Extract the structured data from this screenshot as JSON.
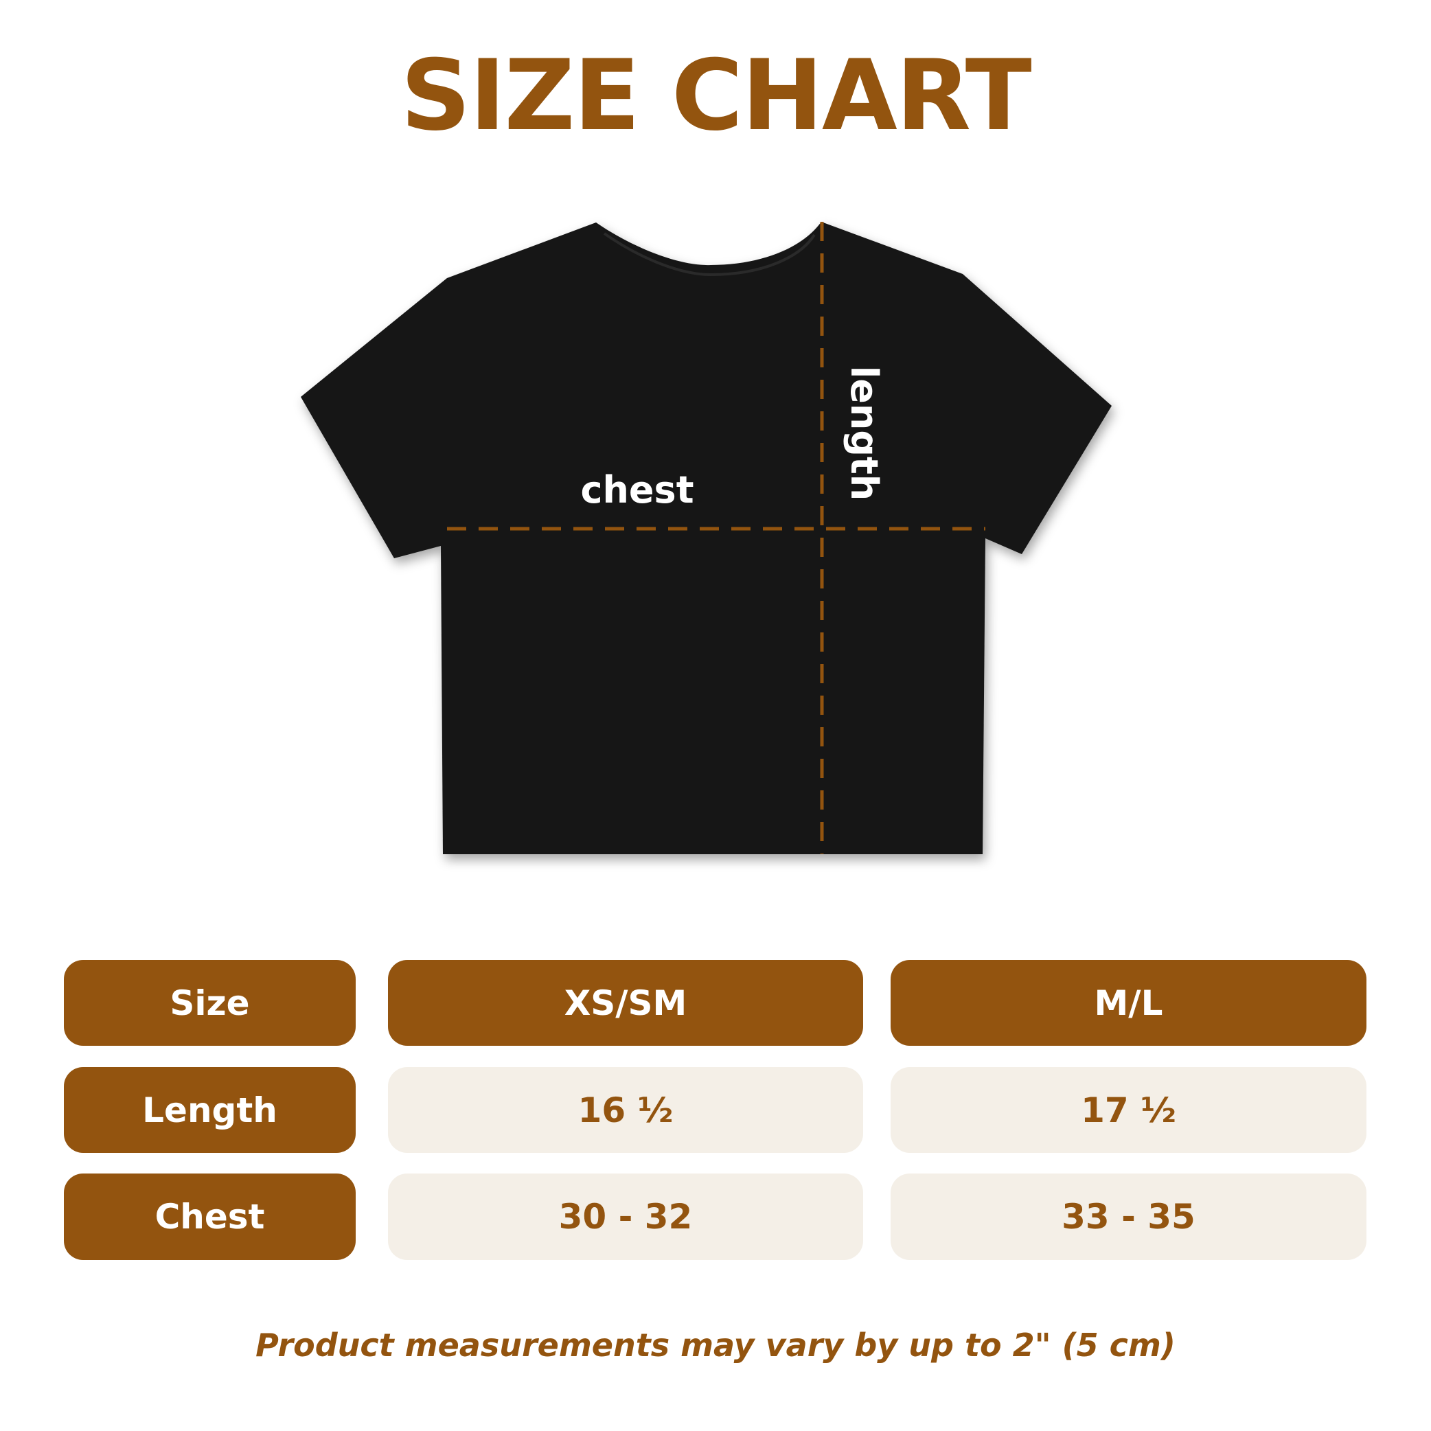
{
  "title": "SIZE CHART",
  "diagram": {
    "chest_label": "chest",
    "length_label": "length",
    "shirt_color": "#111111",
    "dash_color": "#93540f"
  },
  "table": {
    "header": [
      "Size",
      "XS/SM",
      "M/L"
    ],
    "rows": [
      {
        "label": "Length",
        "values": [
          "16 ½",
          "17 ½"
        ]
      },
      {
        "label": "Chest",
        "values": [
          "30 - 32",
          "33 - 35"
        ]
      }
    ]
  },
  "note": "Product measurements may vary by up to 2\" (5 cm)",
  "colors": {
    "accent": "#93540f",
    "cell_bg": "#f4efe7"
  }
}
